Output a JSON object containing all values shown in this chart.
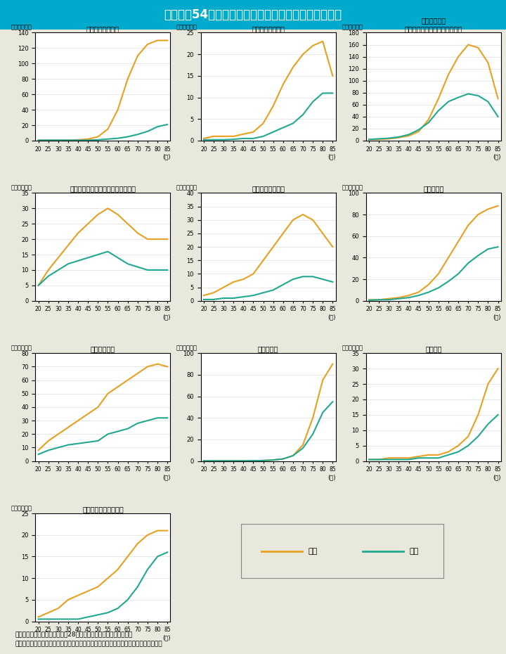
{
  "title": "Ｉ－特－54図　男女別の通院者率（女性に多い疾患）",
  "title_bg": "#00AACC",
  "bg_color": "#E8E8DC",
  "plot_bg": "#FFFFFF",
  "female_color": "#E8A020",
  "male_color": "#20A890",
  "ages": [
    20,
    25,
    30,
    35,
    40,
    45,
    50,
    55,
    60,
    65,
    70,
    75,
    80,
    85
  ],
  "charts": [
    {
      "title": "＜骨粗しょう症＞",
      "ylabel": "（人口千対）",
      "ylim": [
        0,
        140
      ],
      "yticks": [
        0,
        20,
        40,
        60,
        80,
        100,
        120,
        140
      ],
      "female": [
        0.5,
        0.5,
        0.5,
        0.5,
        1,
        2,
        5,
        15,
        40,
        80,
        110,
        125,
        130,
        130
      ],
      "male": [
        0.5,
        0.5,
        0.5,
        0.5,
        0.5,
        0.5,
        1,
        2,
        3,
        5,
        8,
        12,
        18,
        21
      ]
    },
    {
      "title": "＜関節リウマチ＞",
      "ylabel": "（人口千対）",
      "ylim": [
        0,
        25
      ],
      "yticks": [
        0,
        5,
        10,
        15,
        20,
        25
      ],
      "female": [
        0.5,
        1,
        1,
        1,
        1.5,
        2,
        4,
        8,
        13,
        17,
        20,
        22,
        23,
        15
      ],
      "male": [
        0.2,
        0.2,
        0.2,
        0.3,
        0.5,
        0.5,
        1,
        2,
        3,
        4,
        6,
        9,
        11,
        11
      ]
    },
    {
      "title": "＜脂質異常症\n（高コレステロール血症等）＞",
      "ylabel": "（人口千対）",
      "ylim": [
        0,
        180
      ],
      "yticks": [
        0,
        20,
        40,
        60,
        80,
        100,
        120,
        140,
        160,
        180
      ],
      "female": [
        2,
        2,
        3,
        5,
        8,
        15,
        35,
        70,
        110,
        140,
        160,
        155,
        130,
        70
      ],
      "male": [
        2,
        3,
        4,
        6,
        10,
        18,
        30,
        50,
        65,
        72,
        78,
        75,
        65,
        40
      ]
    },
    {
      "title": "＜うつ病やその他のこころの病気＞",
      "ylabel": "（人口千対）",
      "ylim": [
        0,
        35
      ],
      "yticks": [
        0,
        5,
        10,
        15,
        20,
        25,
        30,
        35
      ],
      "female": [
        5,
        10,
        14,
        18,
        22,
        25,
        28,
        30,
        28,
        25,
        22,
        20,
        20,
        20
      ],
      "male": [
        5,
        8,
        10,
        12,
        13,
        14,
        15,
        16,
        14,
        12,
        11,
        10,
        10,
        10
      ]
    },
    {
      "title": "＜甲状腺の病気＞",
      "ylabel": "（人口千対）",
      "ylim": [
        0,
        40
      ],
      "yticks": [
        0,
        5,
        10,
        15,
        20,
        25,
        30,
        35,
        40
      ],
      "female": [
        2,
        3,
        5,
        7,
        8,
        10,
        15,
        20,
        25,
        30,
        32,
        30,
        25,
        20
      ],
      "male": [
        0.5,
        0.5,
        1,
        1,
        1.5,
        2,
        3,
        4,
        6,
        8,
        9,
        9,
        8,
        7
      ]
    },
    {
      "title": "＜関節症＞",
      "ylabel": "（人口千対）",
      "ylim": [
        0,
        100
      ],
      "yticks": [
        0,
        20,
        40,
        60,
        80,
        100
      ],
      "female": [
        1,
        1,
        2,
        3,
        5,
        8,
        15,
        25,
        40,
        55,
        70,
        80,
        85,
        88
      ],
      "male": [
        0.5,
        1,
        1,
        2,
        3,
        5,
        8,
        12,
        18,
        25,
        35,
        42,
        48,
        50
      ]
    },
    {
      "title": "＜肩こり症＞",
      "ylabel": "（人口千対）",
      "ylim": [
        0,
        80
      ],
      "yticks": [
        0,
        10,
        20,
        30,
        40,
        50,
        60,
        70,
        80
      ],
      "female": [
        8,
        15,
        20,
        25,
        30,
        35,
        40,
        50,
        55,
        60,
        65,
        70,
        72,
        70
      ],
      "male": [
        5,
        8,
        10,
        12,
        13,
        14,
        15,
        20,
        22,
        24,
        28,
        30,
        32,
        32
      ]
    },
    {
      "title": "＜認知症＞",
      "ylabel": "（人口千対）",
      "ylim": [
        0,
        100
      ],
      "yticks": [
        0,
        20,
        40,
        60,
        80,
        100
      ],
      "female": [
        0.2,
        0.2,
        0.2,
        0.2,
        0.2,
        0.3,
        0.5,
        1,
        2,
        5,
        15,
        40,
        75,
        90
      ],
      "male": [
        0.2,
        0.2,
        0.2,
        0.2,
        0.2,
        0.3,
        0.5,
        1,
        2,
        5,
        12,
        25,
        45,
        55
      ]
    },
    {
      "title": "＜骨折＞",
      "ylabel": "（人口千対）",
      "ylim": [
        0,
        35
      ],
      "yticks": [
        0,
        5,
        10,
        15,
        20,
        25,
        30,
        35
      ],
      "female": [
        0.5,
        0.5,
        1,
        1,
        1,
        1.5,
        2,
        2,
        3,
        5,
        8,
        15,
        25,
        30
      ],
      "male": [
        0.5,
        0.5,
        0.5,
        0.5,
        0.5,
        1,
        1,
        1,
        2,
        3,
        5,
        8,
        12,
        15
      ]
    },
    {
      "title": "＜貧血・血液の病気＞",
      "ylabel": "（人口千対）",
      "ylim": [
        0,
        25
      ],
      "yticks": [
        0,
        5,
        10,
        15,
        20,
        25
      ],
      "female": [
        1,
        2,
        3,
        5,
        6,
        7,
        8,
        10,
        12,
        15,
        18,
        20,
        21,
        21
      ],
      "male": [
        0.5,
        0.5,
        0.5,
        0.5,
        0.5,
        1,
        1.5,
        2,
        3,
        5,
        8,
        12,
        15,
        16
      ]
    }
  ],
  "note1": "（備考）１．厚生労働省「平成28年国民生活基礎調査」より作成。",
  "note2": "　　　　２．通院者には入院者は含まないが，母数となる世帯人員には入院者を含む。",
  "legend_female": "女性",
  "legend_male": "男性"
}
